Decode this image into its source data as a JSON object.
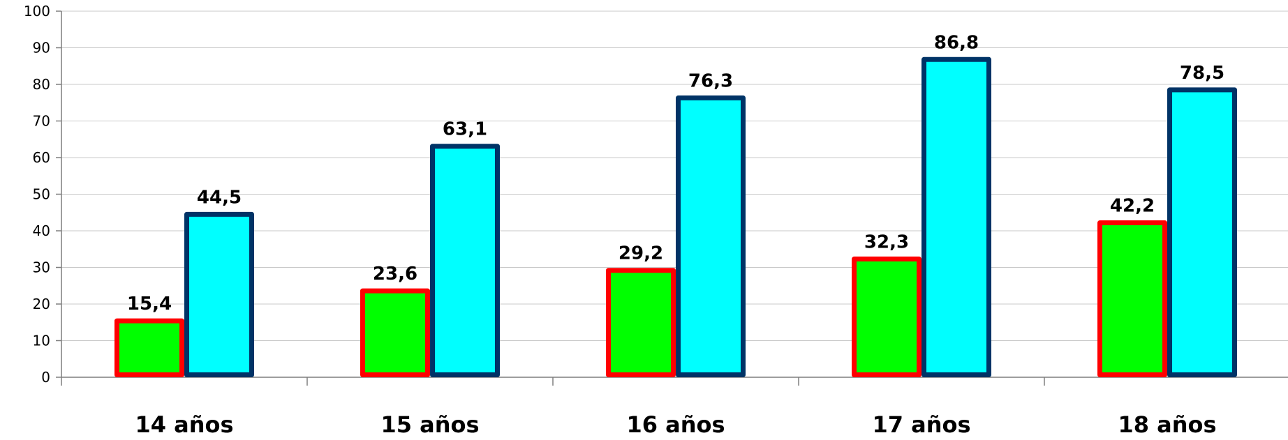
{
  "chart_data": {
    "type": "bar",
    "title": "",
    "xlabel": "",
    "ylabel": "",
    "categories": [
      "14 años",
      "15 años",
      "16 años",
      "17 años",
      "18 años"
    ],
    "series": [
      {
        "values": [
          15.4,
          23.6,
          29.2,
          32.3,
          42.2
        ],
        "labels": [
          "15,4",
          "23,6",
          "29,2",
          "32,3",
          "42,2"
        ],
        "fill": "#00ff00",
        "stroke": "#ff0000"
      },
      {
        "values": [
          44.5,
          63.1,
          76.3,
          86.8,
          78.5
        ],
        "labels": [
          "44,5",
          "63,1",
          "76,3",
          "86,8",
          "78,5"
        ],
        "fill": "#00ffff",
        "stroke": "#003366"
      }
    ],
    "ylim": [
      0,
      100
    ],
    "yticks": [
      "0",
      "10",
      "20",
      "30",
      "40",
      "50",
      "60",
      "70",
      "80",
      "90",
      "100"
    ],
    "grid": true,
    "legend": "none"
  }
}
